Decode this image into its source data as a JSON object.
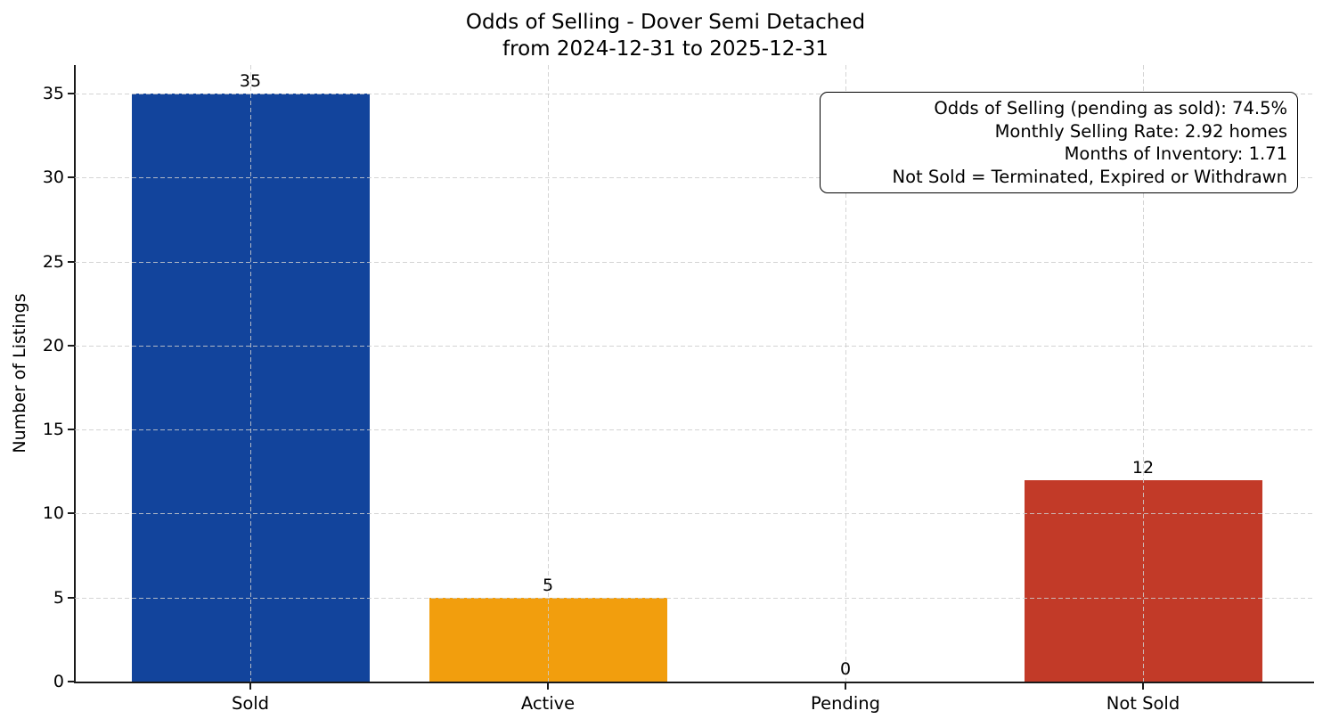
{
  "title": {
    "line1": "Odds of Selling - Dover Semi Detached",
    "line2": "from 2024-12-31 to 2025-12-31"
  },
  "ylabel": "Number of Listings",
  "annotation": {
    "lines": [
      "Odds of Selling (pending as sold): 74.5%",
      "Monthly Selling Rate: 2.92 homes",
      "Months of Inventory: 1.71",
      "Not Sold = Terminated, Expired or Withdrawn"
    ]
  },
  "chart_data": {
    "type": "bar",
    "title": "Odds of Selling - Dover Semi Detached\nfrom 2024-12-31 to 2025-12-31",
    "categories": [
      "Sold",
      "Active",
      "Pending",
      "Not Sold"
    ],
    "values": [
      35,
      5,
      0,
      12
    ],
    "colors": [
      "#12449c",
      "#f29e0d",
      null,
      "#c23a28"
    ],
    "xlabel": "",
    "ylabel": "Number of Listings",
    "yticks": [
      0,
      5,
      10,
      15,
      20,
      25,
      30,
      35
    ],
    "ylim": [
      0,
      36.7
    ],
    "grid": true,
    "grid_style": "dashed",
    "bar_value_labels": [
      "35",
      "5",
      "0",
      "12"
    ],
    "legend": "none",
    "annotation_box": {
      "position": "top-right",
      "lines": [
        "Odds of Selling (pending as sold): 74.5%",
        "Monthly Selling Rate: 2.92 homes",
        "Months of Inventory: 1.71",
        "Not Sold = Terminated, Expired or Withdrawn"
      ]
    }
  }
}
